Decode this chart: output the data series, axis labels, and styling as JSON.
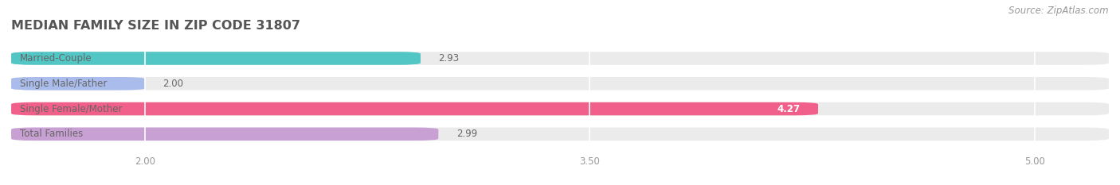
{
  "title": "MEDIAN FAMILY SIZE IN ZIP CODE 31807",
  "source": "Source: ZipAtlas.com",
  "categories": [
    "Married-Couple",
    "Single Male/Father",
    "Single Female/Mother",
    "Total Families"
  ],
  "values": [
    2.93,
    2.0,
    4.27,
    2.99
  ],
  "colors": [
    "#52C5C5",
    "#AABCEC",
    "#F0608A",
    "#C8A0D4"
  ],
  "xlim_min": 1.55,
  "xlim_max": 5.25,
  "xticks": [
    2.0,
    3.5,
    5.0
  ],
  "bar_height": 0.52,
  "background_color": "#ffffff",
  "bar_bg_color": "#ebebeb",
  "label_color": "#666666",
  "value_color_dark": "#666666",
  "value_color_white": "#ffffff",
  "title_fontsize": 11.5,
  "label_fontsize": 8.5,
  "value_fontsize": 8.5,
  "tick_fontsize": 8.5,
  "source_fontsize": 8.5,
  "grid_color": "#ffffff"
}
